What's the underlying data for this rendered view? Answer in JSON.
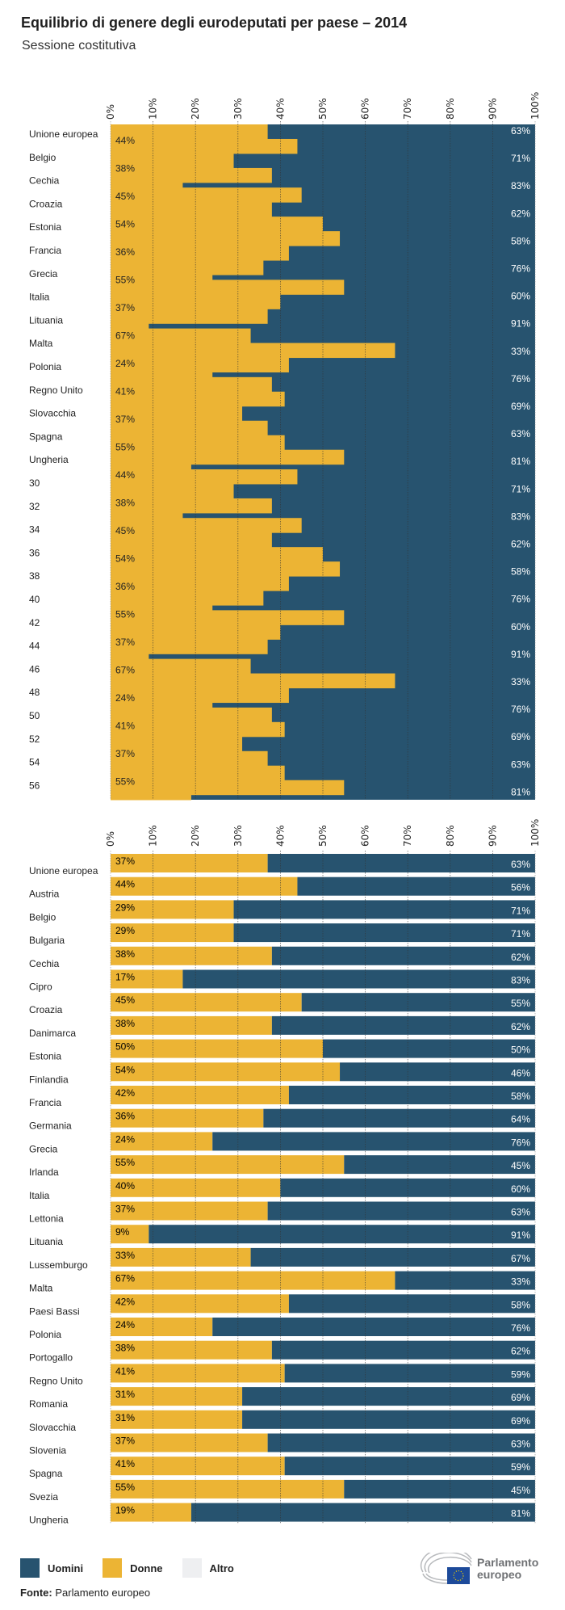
{
  "title": "Equilibrio di genere degli eurodeputati per paese – 2014",
  "subtitle": "Sessione costitutiva",
  "colors": {
    "uomini": "#27536f",
    "donne": "#ecb434",
    "altro": "#eeeff1"
  },
  "legend": [
    {
      "label": "Uomini",
      "color": "#27536f"
    },
    {
      "label": "Donne",
      "color": "#ecb434"
    },
    {
      "label": "Altro",
      "color": "#eeeff1"
    }
  ],
  "source": {
    "label": "Fonte:",
    "text": "Parlamento europeo"
  },
  "logo": {
    "line1": "Parlamento",
    "line2": "europeo"
  },
  "chart_data": [
    {
      "type": "bar",
      "stacked": true,
      "orientation": "horizontal",
      "note_rendering": "overlapping/misaligned render",
      "xticks": [
        "0%",
        "10%",
        "20%",
        "30%",
        "40%",
        "50%",
        "60%",
        "70%",
        "80%",
        "90%",
        "100%"
      ],
      "xlim": [
        0,
        100
      ],
      "categories": [
        "Unione europea",
        "Belgio",
        "Cechia",
        "Croazia",
        "Estonia",
        "Francia",
        "Grecia",
        "Italia",
        "Lituania",
        "Malta",
        "Polonia",
        "Regno Unito",
        "Slovacchia",
        "Spagna",
        "Ungheria",
        "30",
        "32",
        "34",
        "36",
        "38",
        "40",
        "42",
        "44",
        "46",
        "48",
        "50",
        "52",
        "54",
        "56"
      ],
      "donne_labels": [
        "44%",
        "38%",
        "45%",
        "54%",
        "36%",
        "55%",
        "37%",
        "67%",
        "24%",
        "41%",
        "37%",
        "55%",
        "44%",
        "38%",
        "45%",
        "54%",
        "36%",
        "55%",
        "37%",
        "67%",
        "24%",
        "41%",
        "37%",
        "55%"
      ],
      "uomini_labels": [
        "63%",
        "71%",
        "83%",
        "62%",
        "58%",
        "76%",
        "60%",
        "91%",
        "33%",
        "76%",
        "69%",
        "63%",
        "81%",
        "71%",
        "83%",
        "62%",
        "58%",
        "76%",
        "60%",
        "91%",
        "33%",
        "76%",
        "69%",
        "63%",
        "81%"
      ],
      "donne_boundary": [
        37,
        44,
        29,
        38,
        17,
        45,
        38,
        50,
        54,
        42,
        36,
        24,
        55,
        40,
        37,
        9,
        33,
        67,
        42,
        24,
        38,
        41,
        31,
        37,
        41,
        55,
        19,
        44,
        29,
        38,
        17,
        45,
        38,
        50,
        54,
        42,
        36,
        24,
        55,
        40,
        37,
        9,
        33,
        67,
        42,
        24,
        38,
        41,
        31,
        37,
        41,
        55,
        19
      ]
    },
    {
      "type": "bar",
      "stacked": true,
      "orientation": "horizontal",
      "xticks": [
        "0%",
        "10%",
        "20%",
        "30%",
        "40%",
        "50%",
        "60%",
        "70%",
        "80%",
        "90%",
        "100%"
      ],
      "xlim": [
        0,
        100
      ],
      "grid": true,
      "categories": [
        "Unione europea",
        "Austria",
        "Belgio",
        "Bulgaria",
        "Cechia",
        "Cipro",
        "Croazia",
        "Danimarca",
        "Estonia",
        "Finlandia",
        "Francia",
        "Germania",
        "Grecia",
        "Irlanda",
        "Italia",
        "Lettonia",
        "Lituania",
        "Lussemburgo",
        "Malta",
        "Paesi Bassi",
        "Polonia",
        "Portogallo",
        "Regno Unito",
        "Romania",
        "Slovacchia",
        "Slovenia",
        "Spagna",
        "Svezia",
        "Ungheria"
      ],
      "series": [
        {
          "name": "Donne",
          "values": [
            37,
            44,
            29,
            29,
            38,
            17,
            45,
            38,
            50,
            54,
            42,
            36,
            24,
            55,
            40,
            37,
            9,
            33,
            67,
            42,
            24,
            38,
            41,
            31,
            31,
            37,
            41,
            55,
            19
          ]
        },
        {
          "name": "Uomini",
          "values": [
            63,
            56,
            71,
            71,
            62,
            83,
            55,
            62,
            50,
            46,
            58,
            64,
            76,
            45,
            60,
            63,
            91,
            67,
            33,
            58,
            76,
            62,
            59,
            69,
            69,
            63,
            59,
            45,
            81
          ]
        }
      ]
    }
  ]
}
